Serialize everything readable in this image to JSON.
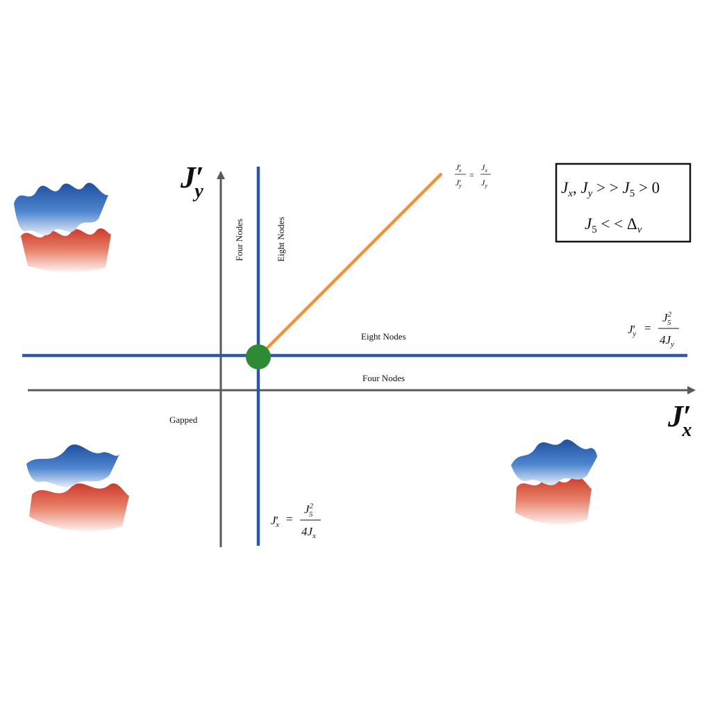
{
  "axes": {
    "x_label": {
      "base": "J",
      "prime": "′",
      "sub": "x"
    },
    "y_label": {
      "base": "J",
      "prime": "′",
      "sub": "y"
    }
  },
  "regions": {
    "eight_nodes_vertical": "Eight Nodes",
    "four_nodes_vertical": "Four Nodes",
    "eight_nodes_horizontal": "Eight Nodes",
    "four_nodes_horizontal": "Four Nodes",
    "gapped": "Gapped"
  },
  "condition_box": {
    "line1": {
      "a": "J",
      "a_sub": "x",
      "sep": ", ",
      "b": "J",
      "b_sub": "y",
      "rel1": " > > ",
      "c": "J",
      "c_sub": "5",
      "rel2": " > 0"
    },
    "line2": {
      "a": "J",
      "a_sub": "5",
      "rel": " < < ",
      "b": "Δ",
      "b_sub": "ν"
    }
  },
  "equations": {
    "horizontal_line": {
      "lhs": "J",
      "lhs_prime": "′",
      "lhs_sub": "y",
      "eq": " = ",
      "num": "J",
      "num_sub": "5",
      "num_sup": "2",
      "den": "4J",
      "den_sub": "y"
    },
    "vertical_line": {
      "lhs": "J",
      "lhs_prime": "′",
      "lhs_sub": "x",
      "eq": " = ",
      "num": "J",
      "num_sub": "5",
      "num_sup": "2",
      "den": "4J",
      "den_sub": "x"
    },
    "diagonal_line": {
      "l_num": "J",
      "l_num_prime": "′",
      "l_num_sub": "x",
      "l_den": "J",
      "l_den_prime": "′",
      "l_den_sub": "y",
      "eq": "=",
      "r_num": "J",
      "r_num_sub": "x",
      "r_den": "J",
      "r_den_sub": "y"
    }
  },
  "colors": {
    "axis": "#5a5a5a",
    "boundary": "#2f56a6",
    "diagonal": "#f0923a",
    "critical_point": "#2f8a36",
    "upper_band": "#2d62b8",
    "lower_band": "#d9452f"
  },
  "band_icons": [
    "band-structure-top-left",
    "band-structure-bottom-left",
    "band-structure-bottom-right"
  ]
}
